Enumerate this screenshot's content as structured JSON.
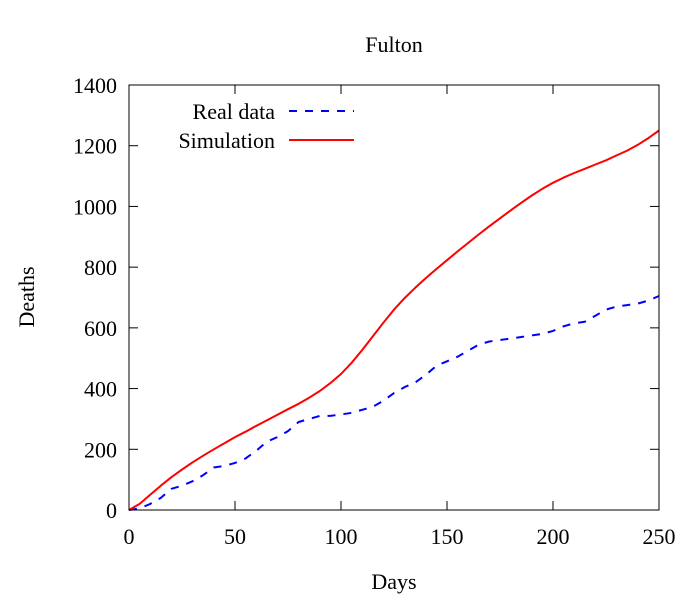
{
  "chart_data": {
    "type": "line",
    "title": "Fulton",
    "xlabel": "Days",
    "ylabel": "Deaths",
    "xlim": [
      0,
      250
    ],
    "ylim": [
      0,
      1400
    ],
    "xticks": [
      0,
      50,
      100,
      150,
      200,
      250
    ],
    "yticks": [
      0,
      200,
      400,
      600,
      800,
      1000,
      1200,
      1400
    ],
    "grid": false,
    "legend_position": "top-left",
    "series": [
      {
        "name": "Real data",
        "color": "#0000ff",
        "style": "dashed",
        "x": [
          0,
          5,
          10,
          15,
          20,
          25,
          30,
          35,
          40,
          45,
          50,
          55,
          60,
          65,
          70,
          75,
          80,
          85,
          90,
          95,
          100,
          105,
          110,
          115,
          120,
          125,
          130,
          135,
          140,
          145,
          150,
          155,
          160,
          165,
          170,
          175,
          180,
          185,
          190,
          195,
          200,
          205,
          210,
          215,
          220,
          225,
          230,
          235,
          240,
          245,
          250
        ],
        "y": [
          0,
          5,
          20,
          40,
          70,
          80,
          95,
          115,
          140,
          145,
          155,
          170,
          195,
          225,
          240,
          260,
          290,
          300,
          310,
          310,
          315,
          320,
          330,
          340,
          360,
          385,
          405,
          420,
          445,
          475,
          490,
          505,
          525,
          545,
          555,
          560,
          565,
          570,
          575,
          580,
          590,
          605,
          615,
          620,
          640,
          660,
          670,
          675,
          680,
          690,
          705
        ]
      },
      {
        "name": "Simulation",
        "color": "#ff0000",
        "style": "solid",
        "x": [
          0,
          5,
          10,
          15,
          20,
          25,
          30,
          35,
          40,
          45,
          50,
          55,
          60,
          65,
          70,
          75,
          80,
          85,
          90,
          95,
          100,
          105,
          110,
          115,
          120,
          125,
          130,
          135,
          140,
          145,
          150,
          155,
          160,
          165,
          170,
          175,
          180,
          185,
          190,
          195,
          200,
          205,
          210,
          215,
          220,
          225,
          230,
          235,
          240,
          245,
          250
        ],
        "y": [
          0,
          20,
          50,
          80,
          108,
          133,
          157,
          179,
          200,
          220,
          240,
          258,
          277,
          295,
          314,
          332,
          350,
          370,
          392,
          418,
          448,
          485,
          527,
          572,
          617,
          660,
          698,
          732,
          764,
          794,
          823,
          852,
          880,
          908,
          935,
          961,
          987,
          1012,
          1036,
          1058,
          1078,
          1095,
          1110,
          1124,
          1138,
          1152,
          1168,
          1184,
          1203,
          1225,
          1250
        ]
      }
    ]
  }
}
